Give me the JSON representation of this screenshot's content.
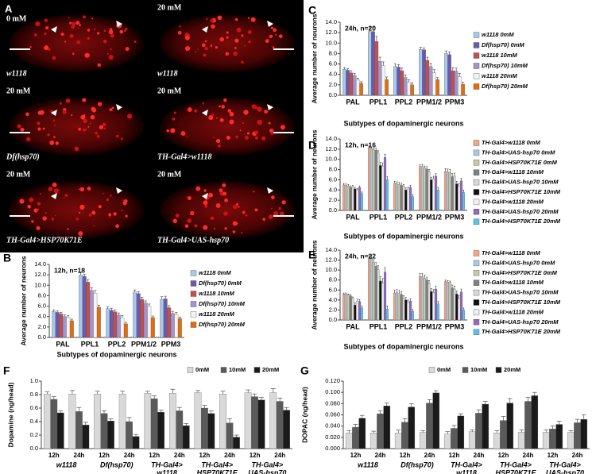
{
  "panel_a": {
    "label": "A",
    "tiles": [
      {
        "concentration": "0 mM",
        "genotype": "w1118"
      },
      {
        "concentration": "20 mM",
        "genotype": "w1118"
      },
      {
        "concentration": "20 mM",
        "genotype": "Df(hsp70)"
      },
      {
        "concentration": "20 mM",
        "genotype": "TH-Gal4>w1118"
      },
      {
        "concentration": "20 mM",
        "genotype": "TH-Gal4>HSP70K71E"
      },
      {
        "concentration": "20 mM",
        "genotype": "TH-Gal4>UAS-hsp70"
      }
    ]
  },
  "chart_data": [
    {
      "type": "bar",
      "panel": "B",
      "title": "12h, n=18",
      "ylabel": "Average number of neurons",
      "xlabel": "Subtypes of dopaminergic neurons",
      "legend": "right",
      "categories": [
        "PAL",
        "PPL1",
        "PPL2",
        "PPM1/2",
        "PPM3"
      ],
      "ylim": [
        0,
        14
      ],
      "yticks": [
        {
          "value": 0,
          "label": "0.0"
        },
        {
          "value": 2,
          "label": "2.0"
        },
        {
          "value": 4,
          "label": "4.0"
        },
        {
          "value": 6,
          "label": "6.0"
        },
        {
          "value": 8,
          "label": "8.0"
        },
        {
          "value": 10,
          "label": "10.0"
        },
        {
          "value": 12,
          "label": "12.0"
        },
        {
          "value": 14,
          "label": "14.0"
        }
      ],
      "series": [
        {
          "name": "w1118 0mM",
          "color": "#a9c9ea",
          "values": [
            5.0,
            12.0,
            5.5,
            8.7,
            7.3
          ],
          "errors": [
            0.3,
            0.4,
            0.4,
            0.4,
            0.5
          ]
        },
        {
          "name": "Df(hsp70) 0mM",
          "color": "#6a5aad",
          "values": [
            4.8,
            11.7,
            5.2,
            8.4,
            7.4
          ],
          "errors": [
            0.3,
            0.4,
            0.4,
            0.4,
            0.5
          ]
        },
        {
          "name": "w1118 10mM",
          "color": "#c0504d",
          "values": [
            4.5,
            10.6,
            4.9,
            7.3,
            5.7
          ],
          "errors": [
            0.3,
            0.5,
            0.4,
            0.4,
            0.4
          ]
        },
        {
          "name": "Df(hsp70) 10mM",
          "color": "#a393cf",
          "values": [
            4.0,
            9.0,
            4.3,
            6.6,
            4.6
          ],
          "errors": [
            0.3,
            0.5,
            0.4,
            0.4,
            0.4
          ]
        },
        {
          "name": "w1118 20mM",
          "color": "#f4f4f4",
          "values": [
            3.9,
            8.5,
            3.8,
            6.0,
            4.4
          ],
          "errors": [
            0.3,
            0.5,
            0.4,
            0.4,
            0.4
          ]
        },
        {
          "name": "Df(hsp70) 20mM",
          "color": "#e46c0a",
          "values": [
            3.2,
            5.8,
            2.6,
            3.8,
            3.6
          ],
          "errors": [
            0.3,
            0.4,
            0.3,
            0.3,
            0.3
          ]
        }
      ]
    },
    {
      "type": "bar",
      "panel": "C",
      "title": "24h, n=20",
      "ylabel": "Average number of neurons",
      "xlabel": "Subtypes of dopaminergic neurons",
      "legend": "right",
      "categories": [
        "PAL",
        "PPL1",
        "PPL2",
        "PPM1/2",
        "PPM3"
      ],
      "ylim": [
        0,
        14
      ],
      "yticks": [
        {
          "value": 0,
          "label": "0.0"
        },
        {
          "value": 2,
          "label": "2.0"
        },
        {
          "value": 4,
          "label": "4.0"
        },
        {
          "value": 6,
          "label": "6.0"
        },
        {
          "value": 8,
          "label": "8.0"
        },
        {
          "value": 10,
          "label": "10.0"
        },
        {
          "value": 12,
          "label": "12.0"
        },
        {
          "value": 14,
          "label": "14.0"
        }
      ],
      "series": [
        {
          "name": "w1118 0mM",
          "color": "#a9c9ea",
          "values": [
            5.0,
            12.2,
            5.5,
            8.8,
            8.0
          ],
          "errors": [
            0.3,
            0.9,
            0.5,
            0.4,
            0.5
          ]
        },
        {
          "name": "Df(hsp70) 0mM",
          "color": "#6a5aad",
          "values": [
            4.8,
            12.2,
            5.4,
            8.7,
            7.8
          ],
          "errors": [
            0.3,
            0.9,
            0.5,
            0.4,
            0.5
          ]
        },
        {
          "name": "w1118 10mM",
          "color": "#c0504d",
          "values": [
            4.3,
            10.3,
            4.7,
            6.7,
            4.7
          ],
          "errors": [
            0.4,
            1.0,
            0.5,
            0.6,
            0.6
          ]
        },
        {
          "name": "Df(hsp70) 10mM",
          "color": "#a393cf",
          "values": [
            3.8,
            6.5,
            3.4,
            5.5,
            4.6
          ],
          "errors": [
            0.4,
            0.8,
            0.5,
            0.6,
            0.6
          ]
        },
        {
          "name": "w1118 20mM",
          "color": "#f4f4f4",
          "values": [
            2.9,
            5.7,
            2.5,
            4.3,
            3.6
          ],
          "errors": [
            0.4,
            0.7,
            0.5,
            0.6,
            0.6
          ]
        },
        {
          "name": "Df(hsp70) 20mM",
          "color": "#e46c0a",
          "values": [
            2.3,
            3.0,
            2.0,
            3.0,
            2.1
          ],
          "errors": [
            0.3,
            0.5,
            0.4,
            0.4,
            0.4
          ]
        }
      ]
    },
    {
      "type": "bar",
      "panel": "D",
      "title": "12h, n=16",
      "ylabel": "Average number of neurons",
      "xlabel": "Subtypes of dopaminergic neurons",
      "legend": "right",
      "categories": [
        "PAL",
        "PPL1",
        "PPL2",
        "PPM1/2",
        "PPM3"
      ],
      "ylim": [
        0,
        14
      ],
      "yticks": [
        {
          "value": 0,
          "label": "0.0"
        },
        {
          "value": 2,
          "label": "2.0"
        },
        {
          "value": 4,
          "label": "4.0"
        },
        {
          "value": 6,
          "label": "6.0"
        },
        {
          "value": 8,
          "label": "8.0"
        },
        {
          "value": 10,
          "label": "10.0"
        },
        {
          "value": 12,
          "label": "12.0"
        },
        {
          "value": 14,
          "label": "14.0"
        }
      ],
      "series": [
        {
          "name": "TH-Gal4>w1118 0mM",
          "color": "#f4a582",
          "values": [
            5.0,
            12.3,
            5.3,
            8.6,
            7.6
          ],
          "errors": [
            0.3,
            0.3,
            0.4,
            0.4,
            0.6
          ]
        },
        {
          "name": "TH-Gal4>UAS-hsp70 0mM",
          "color": "#a9c9ea",
          "values": [
            4.9,
            12.1,
            5.2,
            8.6,
            7.5
          ],
          "errors": [
            0.3,
            0.3,
            0.4,
            0.4,
            0.6
          ]
        },
        {
          "name": "TH-Gal4>HSP70K71E 0mM",
          "color": "#c9c9a3",
          "values": [
            4.8,
            11.9,
            5.1,
            8.3,
            7.4
          ],
          "errors": [
            0.3,
            0.3,
            0.4,
            0.4,
            0.6
          ]
        },
        {
          "name": "TH-Gal4>w1118 10mM",
          "color": "#7f7f7f",
          "values": [
            4.5,
            11.8,
            4.9,
            8.1,
            6.6
          ],
          "errors": [
            0.3,
            0.4,
            0.4,
            0.5,
            0.6
          ]
        },
        {
          "name": "TH-Gal4>UAS-hsp70 10mM",
          "color": "#d9d9d9",
          "values": [
            4.6,
            11.2,
            4.7,
            7.5,
            6.7
          ],
          "errors": [
            0.3,
            0.5,
            0.4,
            0.5,
            0.6
          ]
        },
        {
          "name": "TH-Gal4>HSP70K71E 10mM",
          "color": "#111111",
          "values": [
            4.2,
            8.8,
            4.0,
            6.0,
            5.2
          ],
          "errors": [
            0.3,
            0.6,
            0.4,
            0.5,
            0.5
          ]
        },
        {
          "name": "TH-Gal4>w1118 20mM",
          "color": "#efefef",
          "values": [
            4.0,
            8.7,
            4.2,
            6.2,
            4.8
          ],
          "errors": [
            0.3,
            0.6,
            0.4,
            0.5,
            0.5
          ]
        },
        {
          "name": "TH-Gal4>UAS-hsp70 20mM",
          "color": "#8e6bbf",
          "values": [
            4.5,
            10.4,
            4.5,
            6.7,
            5.8
          ],
          "errors": [
            0.3,
            0.6,
            0.4,
            0.5,
            0.5
          ]
        },
        {
          "name": "TH-Gal4>HSP70K71E 20mM",
          "color": "#5bc0eb",
          "values": [
            3.3,
            6.0,
            2.7,
            4.0,
            3.5
          ],
          "errors": [
            0.3,
            0.6,
            0.4,
            0.5,
            0.5
          ]
        }
      ]
    },
    {
      "type": "bar",
      "panel": "E",
      "title": "24h, n=22",
      "ylabel": "Average number of neurons",
      "xlabel": "Subtypes of dopaminergic neurons",
      "legend": "right",
      "categories": [
        "PAL",
        "PPL1",
        "PPL2",
        "PPM1/2",
        "PPM3"
      ],
      "ylim": [
        0,
        14
      ],
      "yticks": [
        {
          "value": 0,
          "label": "0.0"
        },
        {
          "value": 2,
          "label": "2.0"
        },
        {
          "value": 4,
          "label": "4.0"
        },
        {
          "value": 6,
          "label": "6.0"
        },
        {
          "value": 8,
          "label": "8.0"
        },
        {
          "value": 10,
          "label": "10.0"
        },
        {
          "value": 12,
          "label": "12.0"
        },
        {
          "value": 14,
          "label": "14.0"
        }
      ],
      "series": [
        {
          "name": "TH-Gal4>w1118 0mM",
          "color": "#f4a582",
          "values": [
            5.2,
            12.3,
            5.4,
            8.7,
            7.7
          ],
          "errors": [
            0.2,
            0.6,
            0.6,
            0.6,
            0.3
          ]
        },
        {
          "name": "TH-Gal4>UAS-hsp70 0mM",
          "color": "#a9c9ea",
          "values": [
            5.2,
            12.3,
            5.5,
            8.7,
            7.6
          ],
          "errors": [
            0.2,
            0.6,
            0.6,
            0.6,
            0.3
          ]
        },
        {
          "name": "TH-Gal4>HSP70K71E 0mM",
          "color": "#c9c9a3",
          "values": [
            5.0,
            11.5,
            5.3,
            8.4,
            7.5
          ],
          "errors": [
            0.2,
            0.6,
            0.6,
            0.6,
            0.3
          ]
        },
        {
          "name": "TH-Gal4>w1118 10mM",
          "color": "#7f7f7f",
          "values": [
            4.8,
            10.8,
            5.1,
            8.0,
            6.4
          ],
          "errors": [
            0.3,
            0.7,
            0.6,
            0.6,
            0.6
          ]
        },
        {
          "name": "TH-Gal4>UAS-hsp70 10mM",
          "color": "#d9d9d9",
          "values": [
            4.3,
            10.1,
            4.3,
            7.3,
            6.2
          ],
          "errors": [
            0.3,
            0.8,
            0.6,
            0.6,
            0.6
          ]
        },
        {
          "name": "TH-Gal4>HSP70K71E 10mM",
          "color": "#111111",
          "values": [
            3.0,
            7.8,
            4.0,
            5.7,
            5.2
          ],
          "errors": [
            0.4,
            0.9,
            0.5,
            0.6,
            0.6
          ]
        },
        {
          "name": "TH-Gal4>w1118 20mM",
          "color": "#efefef",
          "values": [
            3.8,
            7.4,
            3.5,
            5.5,
            4.3
          ],
          "errors": [
            0.4,
            0.9,
            0.5,
            0.6,
            0.6
          ]
        },
        {
          "name": "TH-Gal4>UAS-hsp70 20mM",
          "color": "#8e6bbf",
          "values": [
            3.7,
            9.6,
            3.8,
            6.2,
            5.6
          ],
          "errors": [
            0.4,
            0.9,
            0.5,
            0.6,
            0.6
          ]
        },
        {
          "name": "TH-Gal4>HSP70K71E 20mM",
          "color": "#5bc0eb",
          "values": [
            2.4,
            2.2,
            1.7,
            3.2,
            2.0
          ],
          "errors": [
            0.4,
            0.6,
            0.4,
            0.5,
            0.4
          ]
        }
      ]
    },
    {
      "type": "bar",
      "panel": "F",
      "ylabel": "Dopamine (ng/head)",
      "legend": "top",
      "categories": [
        "12h",
        "24h",
        "12h",
        "24h",
        "12h",
        "24h",
        "12h",
        "24h",
        "12h",
        "24h"
      ],
      "groups": [
        [
          "w1118"
        ],
        [
          "Df(hsp70)"
        ],
        [
          "TH-Gal4>",
          "w1118"
        ],
        [
          "TH-Gal4>",
          "HSP70K71E"
        ],
        [
          "TH-Gal4>",
          "UAS-hsp70"
        ]
      ],
      "ylim": [
        0,
        1.0
      ],
      "yticks": [
        {
          "value": 0,
          "label": "0.0"
        },
        0.2,
        0.4,
        0.6,
        0.8,
        {
          "value": 1,
          "label": "1.0"
        }
      ],
      "series": [
        {
          "name": "0mM",
          "color": "#d9d9d9",
          "values": [
            0.81,
            0.81,
            0.81,
            0.81,
            0.82,
            0.82,
            0.83,
            0.81,
            0.83,
            0.83
          ],
          "errors": [
            0.03,
            0.05,
            0.04,
            0.04,
            0.03,
            0.06,
            0.03,
            0.04,
            0.04,
            0.06
          ]
        },
        {
          "name": "10mM",
          "color": "#5a5a5a",
          "values": [
            0.73,
            0.55,
            0.52,
            0.4,
            0.74,
            0.56,
            0.6,
            0.38,
            0.77,
            0.7
          ],
          "errors": [
            0.04,
            0.06,
            0.04,
            0.06,
            0.04,
            0.05,
            0.04,
            0.06,
            0.04,
            0.05
          ]
        },
        {
          "name": "20mM",
          "color": "#1a1a1a",
          "values": [
            0.53,
            0.35,
            0.41,
            0.18,
            0.54,
            0.34,
            0.52,
            0.17,
            0.72,
            0.57
          ],
          "errors": [
            0.03,
            0.04,
            0.03,
            0.03,
            0.03,
            0.03,
            0.04,
            0.03,
            0.04,
            0.04
          ]
        }
      ]
    },
    {
      "type": "bar",
      "panel": "G",
      "ylabel": "DOPAC (ng/head)",
      "legend": "top",
      "categories": [
        "12h",
        "24h",
        "12h",
        "24h",
        "12h",
        "24h",
        "12h",
        "24h",
        "12h",
        "24h"
      ],
      "groups": [
        [
          "w1118"
        ],
        [
          "Df(hsp70)"
        ],
        [
          "TH-Gal4>",
          "w1118"
        ],
        [
          "TH-Gal4>",
          "HSP70K71E"
        ],
        [
          "TH-Gal4>",
          "UAS-hsp70"
        ]
      ],
      "ylim": [
        0,
        0.12
      ],
      "yticks": [
        {
          "value": 0,
          "label": "0.000"
        },
        {
          "value": 0.02,
          "label": "0.020"
        },
        {
          "value": 0.04,
          "label": "0.040"
        },
        {
          "value": 0.06,
          "label": "0.060"
        },
        {
          "value": 0.08,
          "label": "0.080"
        },
        {
          "value": 0.1,
          "label": "0.100"
        },
        {
          "value": 0.12,
          "label": "0.120"
        }
      ],
      "series": [
        {
          "name": "0mM",
          "color": "#d9d9d9",
          "values": [
            0.028,
            0.028,
            0.028,
            0.029,
            0.026,
            0.03,
            0.028,
            0.029,
            0.029,
            0.029
          ],
          "errors": [
            0.004,
            0.003,
            0.005,
            0.003,
            0.004,
            0.003,
            0.004,
            0.004,
            0.004,
            0.003
          ]
        },
        {
          "name": "10mM",
          "color": "#5a5a5a",
          "values": [
            0.038,
            0.062,
            0.047,
            0.081,
            0.036,
            0.063,
            0.05,
            0.084,
            0.035,
            0.046
          ],
          "errors": [
            0.005,
            0.005,
            0.006,
            0.006,
            0.005,
            0.006,
            0.007,
            0.007,
            0.005,
            0.006
          ]
        },
        {
          "name": "20mM",
          "color": "#1a1a1a",
          "values": [
            0.054,
            0.076,
            0.074,
            0.099,
            0.058,
            0.079,
            0.081,
            0.094,
            0.043,
            0.052
          ],
          "errors": [
            0.005,
            0.005,
            0.006,
            0.004,
            0.004,
            0.005,
            0.008,
            0.006,
            0.006,
            0.008
          ]
        }
      ]
    }
  ]
}
